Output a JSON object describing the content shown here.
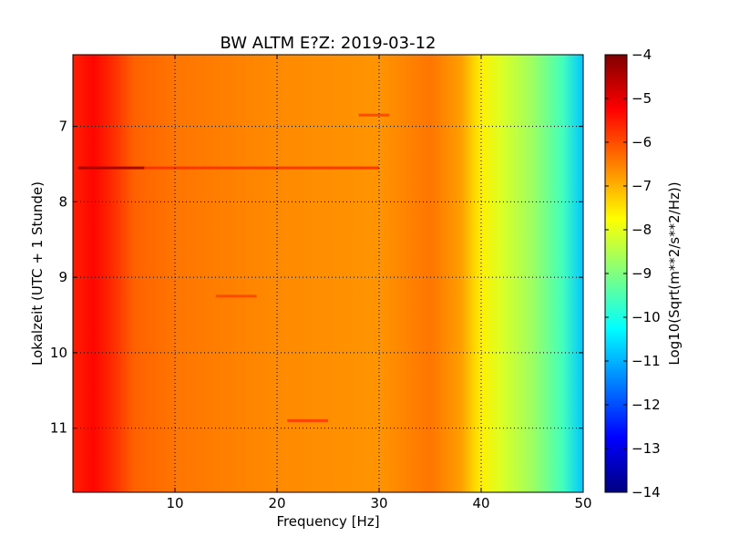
{
  "chart_data": {
    "type": "heatmap",
    "title": "BW ALTM E?Z: 2019-03-12",
    "xlabel": "Frequency [Hz]",
    "ylabel": "Lokalzeit (UTC + 1 Stunde)",
    "xlim": [
      0,
      50
    ],
    "ylim": [
      11.85,
      6.05
    ],
    "x_ticks": [
      10,
      20,
      30,
      40,
      50
    ],
    "x_tick_labels": [
      "10",
      "20",
      "30",
      "40",
      "50"
    ],
    "y_ticks": [
      7,
      8,
      9,
      10,
      11
    ],
    "y_tick_labels": [
      "7",
      "8",
      "9",
      "10",
      "11"
    ],
    "grid": true,
    "colorbar": {
      "label": "Log10(Sqrt(m**2/s**2/Hz))",
      "range": [
        -14,
        -4
      ],
      "ticks": [
        -4,
        -5,
        -6,
        -7,
        -8,
        -9,
        -10,
        -11,
        -12,
        -13,
        -14
      ],
      "tick_labels": [
        "−4",
        "−5",
        "−6",
        "−7",
        "−8",
        "−9",
        "−10",
        "−11",
        "−12",
        "−13",
        "−14"
      ],
      "colormap": "jet"
    },
    "spectrum_profile": [
      {
        "freq": 0.5,
        "level": -5.5
      },
      {
        "freq": 2,
        "level": -5.3
      },
      {
        "freq": 4,
        "level": -5.7
      },
      {
        "freq": 6,
        "level": -6.2
      },
      {
        "freq": 10,
        "level": -6.4
      },
      {
        "freq": 20,
        "level": -6.6
      },
      {
        "freq": 30,
        "level": -6.7
      },
      {
        "freq": 35,
        "level": -6.4
      },
      {
        "freq": 38,
        "level": -6.8
      },
      {
        "freq": 40,
        "level": -7.6
      },
      {
        "freq": 42,
        "level": -8.1
      },
      {
        "freq": 45,
        "level": -8.7
      },
      {
        "freq": 48,
        "level": -9.6
      },
      {
        "freq": 50,
        "level": -10.8
      }
    ],
    "highlights": [
      {
        "time": 7.55,
        "freq_from": 0.5,
        "freq_to": 7,
        "level": -4.3
      },
      {
        "time": 7.55,
        "freq_from": 7,
        "freq_to": 30,
        "level": -5.7
      },
      {
        "time": 10.9,
        "freq_from": 21,
        "freq_to": 25,
        "level": -5.8
      },
      {
        "time": 9.25,
        "freq_from": 14,
        "freq_to": 18,
        "level": -5.9
      },
      {
        "time": 6.85,
        "freq_from": 28,
        "freq_to": 31,
        "level": -5.9
      }
    ]
  }
}
